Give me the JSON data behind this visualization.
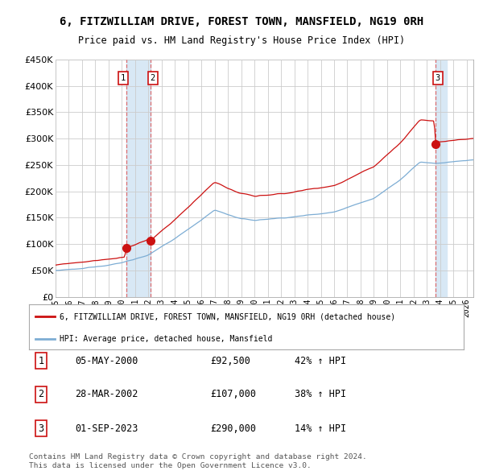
{
  "title": "6, FITZWILLIAM DRIVE, FOREST TOWN, MANSFIELD, NG19 0RH",
  "subtitle": "Price paid vs. HM Land Registry's House Price Index (HPI)",
  "legend_line1": "6, FITZWILLIAM DRIVE, FOREST TOWN, MANSFIELD, NG19 0RH (detached house)",
  "legend_line2": "HPI: Average price, detached house, Mansfield",
  "transactions": [
    {
      "num": 1,
      "date": "05-MAY-2000",
      "price": 92500,
      "pct": "42%",
      "dir": "↑"
    },
    {
      "num": 2,
      "date": "28-MAR-2002",
      "price": 107000,
      "pct": "38%",
      "dir": "↑"
    },
    {
      "num": 3,
      "date": "01-SEP-2023",
      "price": 290000,
      "pct": "14%",
      "dir": "↑"
    }
  ],
  "footer": "Contains HM Land Registry data © Crown copyright and database right 2024.\nThis data is licensed under the Open Government Licence v3.0.",
  "hpi_color": "#7dadd4",
  "price_color": "#cc1111",
  "dot_color": "#cc1111",
  "bg_color": "#ffffff",
  "grid_color": "#cccccc",
  "shade_color": "#d8e8f5",
  "ylim": [
    0,
    450000
  ],
  "yticks": [
    0,
    50000,
    100000,
    150000,
    200000,
    250000,
    300000,
    350000,
    400000,
    450000
  ],
  "xstart_year": 1995.0,
  "xend_year": 2026.5
}
